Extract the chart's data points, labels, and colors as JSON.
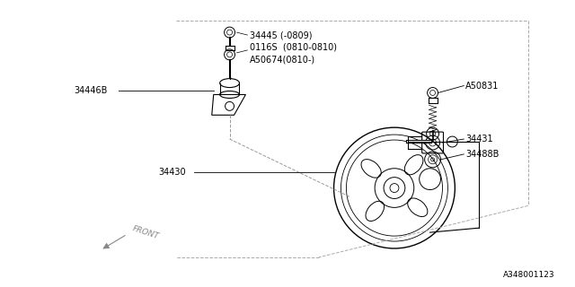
{
  "background_color": "#ffffff",
  "diagram_id": "A348001123",
  "font_size": 7,
  "line_color": "#000000",
  "label_34445": "34445 (-0809)",
  "label_0116S": "0116S  (0810-0810)",
  "label_A50674": "A50674(0810-)",
  "label_34446B": "34446B",
  "label_34430": "34430",
  "label_A50831": "A50831",
  "label_34431": "34431",
  "label_34488B": "34488B",
  "label_FRONT": "FRONT"
}
